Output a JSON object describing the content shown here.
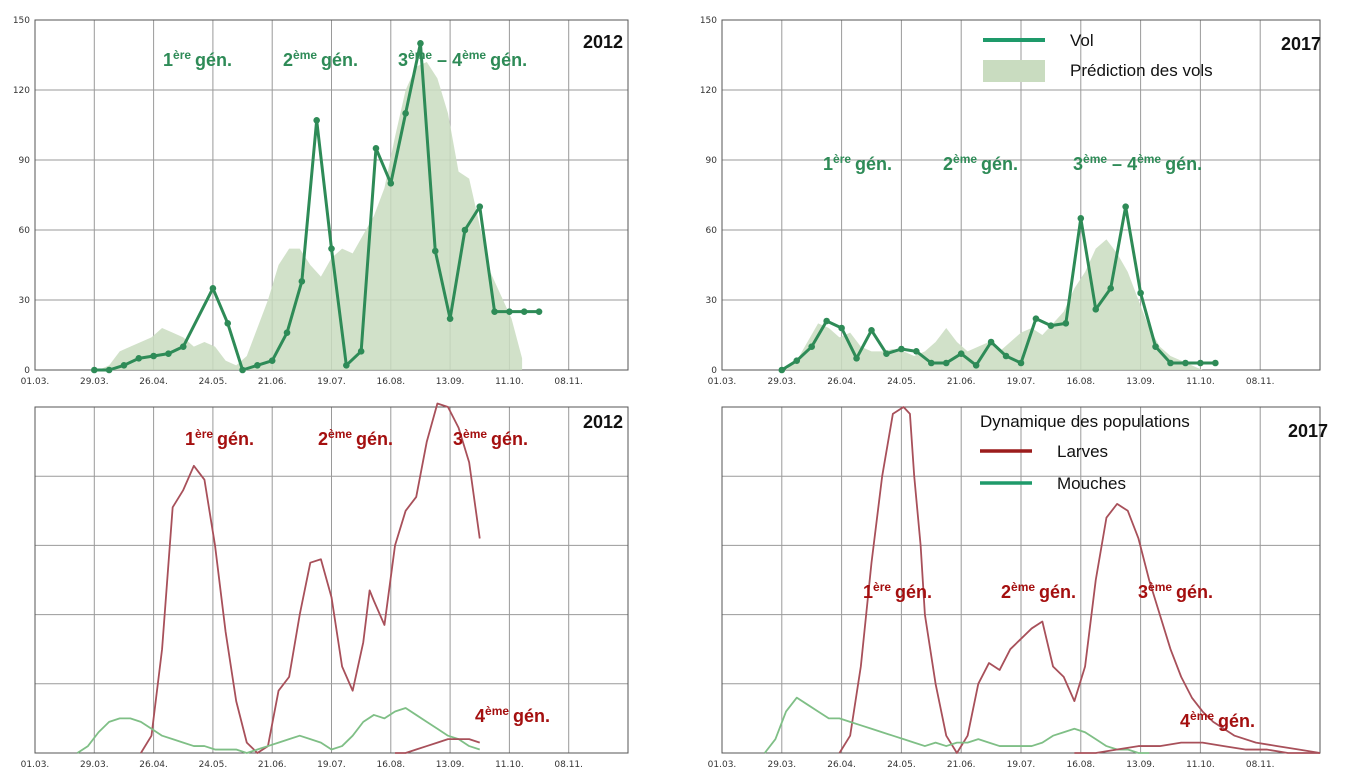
{
  "colors": {
    "flight": "#2e8b57",
    "prediction_fill": "#c9dcc0",
    "larvae": "#a8505a",
    "flies": "#7fbf86",
    "gen_green": "#2e8b57",
    "gen_red": "#a40f0f",
    "legend_larvae": "#9b1c1c",
    "legend_flies": "#1e9a6a"
  },
  "chart_data": [
    {
      "type": "line",
      "year": "2012",
      "x_tick_labels": [
        "01.03.",
        "29.03.",
        "26.04.",
        "24.05.",
        "21.06.",
        "19.07.",
        "16.08.",
        "13.09.",
        "11.10.",
        "08.11."
      ],
      "y_tick_labels": [
        "0",
        "30",
        "60",
        "90",
        "120",
        "150"
      ],
      "ylim": [
        0,
        150
      ],
      "xlim_days": [
        0,
        280
      ],
      "grid": true,
      "generation_labels": [
        {
          "num": "1",
          "sup": "ère",
          "word": "gén.",
          "dash": "",
          "num2": "",
          "sup2": ""
        },
        {
          "num": "2",
          "sup": "ème",
          "word": "gén.",
          "dash": "",
          "num2": "",
          "sup2": ""
        },
        {
          "num": "3",
          "sup": "ème",
          "word": "gén.",
          "dash": " – ",
          "num2": "4",
          "sup2": "ème"
        }
      ],
      "series": [
        {
          "name": "Vol",
          "style": "line-markers",
          "x": [
            28,
            35,
            42,
            49,
            56,
            63,
            70,
            84,
            91,
            98,
            105,
            112,
            119,
            126,
            133,
            140,
            147,
            154,
            161,
            168,
            175,
            182,
            189,
            196,
            203,
            210,
            217,
            224,
            231,
            238
          ],
          "y": [
            0,
            0,
            2,
            5,
            6,
            7,
            10,
            35,
            20,
            0,
            2,
            4,
            16,
            38,
            107,
            52,
            2,
            8,
            95,
            80,
            110,
            140,
            51,
            22,
            60,
            70,
            25,
            25,
            25,
            25
          ]
        },
        {
          "name": "Prédiction des vols",
          "style": "area",
          "x": [
            30,
            35,
            40,
            45,
            50,
            55,
            60,
            65,
            70,
            75,
            80,
            85,
            90,
            95,
            100,
            105,
            110,
            115,
            120,
            125,
            130,
            135,
            140,
            145,
            150,
            155,
            160,
            165,
            170,
            175,
            180,
            185,
            190,
            195,
            200,
            205,
            210,
            215,
            220,
            225,
            230
          ],
          "y": [
            0,
            2,
            8,
            10,
            12,
            14,
            18,
            16,
            14,
            10,
            12,
            10,
            4,
            2,
            6,
            18,
            30,
            45,
            52,
            52,
            45,
            40,
            48,
            52,
            50,
            58,
            66,
            78,
            100,
            120,
            130,
            132,
            125,
            110,
            85,
            82,
            62,
            42,
            32,
            22,
            5
          ]
        }
      ]
    },
    {
      "type": "line",
      "year": "2017",
      "x_tick_labels": [
        "01.03.",
        "29.03.",
        "26.04.",
        "24.05.",
        "21.06.",
        "19.07.",
        "16.08.",
        "13.09.",
        "11.10.",
        "08.11."
      ],
      "y_tick_labels": [
        "0",
        "30",
        "60",
        "90",
        "120",
        "150"
      ],
      "ylim": [
        0,
        150
      ],
      "xlim_days": [
        0,
        280
      ],
      "grid": true,
      "legend": [
        {
          "label": "Vol",
          "kind": "line"
        },
        {
          "label": "Prédiction des vols",
          "kind": "area"
        }
      ],
      "generation_labels": [
        {
          "num": "1",
          "sup": "ère",
          "word": "gén.",
          "dash": "",
          "num2": "",
          "sup2": ""
        },
        {
          "num": "2",
          "sup": "ème",
          "word": "gén.",
          "dash": "",
          "num2": "",
          "sup2": ""
        },
        {
          "num": "3",
          "sup": "ème",
          "word": "gén.",
          "dash": " – ",
          "num2": "4",
          "sup2": "ème"
        }
      ],
      "series": [
        {
          "name": "Vol",
          "style": "line-markers",
          "x": [
            28,
            35,
            42,
            49,
            56,
            63,
            70,
            77,
            84,
            91,
            98,
            105,
            112,
            119,
            126,
            133,
            140,
            147,
            154,
            161,
            168,
            175,
            182,
            189,
            196,
            203,
            210,
            217,
            224,
            231
          ],
          "y": [
            0,
            4,
            10,
            21,
            18,
            5,
            17,
            7,
            9,
            8,
            3,
            3,
            7,
            2,
            12,
            6,
            3,
            22,
            19,
            20,
            65,
            26,
            35,
            70,
            33,
            10,
            3,
            3,
            3,
            3
          ]
        },
        {
          "name": "Prédiction des vols",
          "style": "area",
          "x": [
            30,
            35,
            40,
            45,
            50,
            55,
            60,
            65,
            70,
            75,
            80,
            85,
            90,
            95,
            100,
            105,
            110,
            115,
            120,
            125,
            130,
            135,
            140,
            145,
            150,
            155,
            160,
            165,
            170,
            175,
            180,
            185,
            190,
            195,
            200,
            205,
            210,
            215,
            220,
            225
          ],
          "y": [
            0,
            4,
            12,
            20,
            18,
            14,
            16,
            10,
            8,
            8,
            9,
            8,
            6,
            8,
            12,
            18,
            12,
            8,
            10,
            12,
            8,
            12,
            16,
            18,
            15,
            20,
            25,
            35,
            42,
            52,
            56,
            50,
            42,
            30,
            18,
            10,
            6,
            4,
            2,
            0
          ]
        }
      ]
    },
    {
      "type": "line",
      "year": "2012",
      "x_tick_labels": [
        "01.03.",
        "29.03.",
        "26.04.",
        "24.05.",
        "21.06.",
        "19.07.",
        "16.08.",
        "13.09.",
        "11.10.",
        "08.11."
      ],
      "y_tick_labels": [],
      "ylim": [
        0,
        100
      ],
      "xlim_days": [
        0,
        280
      ],
      "grid": true,
      "generation_labels": [
        {
          "num": "1",
          "sup": "ère",
          "word": "gén.",
          "dash": "",
          "num2": "",
          "sup2": ""
        },
        {
          "num": "2",
          "sup": "ème",
          "word": "gén.",
          "dash": "",
          "num2": "",
          "sup2": ""
        },
        {
          "num": "3",
          "sup": "ème",
          "word": "gén.",
          "dash": "",
          "num2": "",
          "sup2": ""
        },
        {
          "num": "4",
          "sup": "ème",
          "word": "gén.",
          "dash": "",
          "num2": "",
          "sup2": ""
        }
      ],
      "series": [
        {
          "name": "Larves",
          "style": "line",
          "x": [
            50,
            55,
            60,
            65,
            70,
            75,
            80,
            85,
            90,
            95,
            100,
            105,
            110,
            115,
            120,
            125,
            130,
            135,
            140,
            145,
            150,
            155,
            158,
            160,
            165,
            170,
            175,
            180,
            185,
            190,
            195,
            200,
            205,
            210
          ],
          "y": [
            0,
            5,
            30,
            71,
            76,
            83,
            79,
            60,
            35,
            15,
            3,
            0,
            2,
            18,
            22,
            40,
            55,
            56,
            45,
            25,
            18,
            32,
            47,
            44,
            37,
            60,
            70,
            74,
            90,
            101,
            100,
            94,
            84,
            62
          ]
        },
        {
          "name": "Mouches",
          "style": "line",
          "x": [
            20,
            25,
            30,
            35,
            40,
            45,
            50,
            55,
            60,
            65,
            70,
            75,
            80,
            85,
            90,
            95,
            100,
            105,
            110,
            115,
            120,
            125,
            130,
            135,
            140,
            145,
            150,
            155,
            160,
            165,
            170,
            175,
            180,
            185,
            190,
            195,
            200,
            205,
            210
          ],
          "y": [
            0,
            2,
            6,
            9,
            10,
            10,
            9,
            7,
            5,
            4,
            3,
            2,
            2,
            1,
            1,
            1,
            0,
            1,
            2,
            3,
            4,
            5,
            4,
            3,
            1,
            2,
            5,
            9,
            11,
            10,
            12,
            13,
            11,
            9,
            7,
            5,
            4,
            2,
            1
          ]
        },
        {
          "name": "Larves (4e gén.)",
          "style": "line",
          "x": [
            170,
            175,
            180,
            185,
            190,
            195,
            200,
            205,
            210
          ],
          "y": [
            0,
            0,
            1,
            2,
            3,
            4,
            4,
            4,
            3
          ]
        }
      ]
    },
    {
      "type": "line",
      "year": "2017",
      "x_tick_labels": [
        "01.03.",
        "29.03.",
        "26.04.",
        "24.05.",
        "21.06.",
        "19.07.",
        "16.08.",
        "13.09.",
        "11.10.",
        "08.11."
      ],
      "y_tick_labels": [],
      "ylim": [
        0,
        100
      ],
      "xlim_days": [
        0,
        280
      ],
      "grid": true,
      "legend_title": "Dynamique des populations",
      "legend": [
        {
          "label": "Larves",
          "kind": "line-red"
        },
        {
          "label": "Mouches",
          "kind": "line-green"
        }
      ],
      "generation_labels": [
        {
          "num": "1",
          "sup": "ère",
          "word": "gén.",
          "dash": "",
          "num2": "",
          "sup2": ""
        },
        {
          "num": "2",
          "sup": "ème",
          "word": "gén.",
          "dash": "",
          "num2": "",
          "sup2": ""
        },
        {
          "num": "3",
          "sup": "ème",
          "word": "gén.",
          "dash": "",
          "num2": "",
          "sup2": ""
        },
        {
          "num": "4",
          "sup": "ème",
          "word": "gén.",
          "dash": "",
          "num2": "",
          "sup2": ""
        }
      ],
      "series": [
        {
          "name": "Larves",
          "style": "line",
          "x": [
            55,
            60,
            65,
            70,
            75,
            80,
            85,
            88,
            90,
            93,
            95,
            100,
            105,
            110,
            115,
            120,
            125,
            130,
            135,
            140,
            145,
            150,
            155,
            160,
            165,
            170,
            175,
            180,
            185,
            190,
            195,
            200,
            205,
            210,
            215,
            220,
            225,
            230,
            235,
            240,
            250,
            260,
            270,
            280
          ],
          "y": [
            0,
            5,
            25,
            55,
            80,
            98,
            100,
            98,
            80,
            60,
            40,
            20,
            5,
            0,
            5,
            20,
            26,
            24,
            30,
            33,
            36,
            38,
            25,
            22,
            15,
            25,
            50,
            68,
            72,
            70,
            62,
            50,
            40,
            30,
            22,
            16,
            12,
            9,
            7,
            5,
            3,
            2,
            1,
            0
          ]
        },
        {
          "name": "Mouches",
          "style": "line",
          "x": [
            20,
            25,
            30,
            35,
            40,
            45,
            50,
            55,
            60,
            65,
            70,
            75,
            80,
            85,
            90,
            95,
            100,
            105,
            110,
            115,
            120,
            125,
            130,
            135,
            140,
            145,
            150,
            155,
            160,
            165,
            170,
            175,
            180,
            185,
            190,
            195,
            200
          ],
          "y": [
            0,
            4,
            12,
            16,
            14,
            12,
            10,
            10,
            9,
            8,
            7,
            6,
            5,
            4,
            3,
            2,
            3,
            2,
            3,
            3,
            4,
            3,
            2,
            2,
            2,
            2,
            3,
            5,
            6,
            7,
            6,
            4,
            2,
            1,
            1,
            0,
            0
          ]
        },
        {
          "name": "Larves (4e gén.)",
          "style": "line",
          "x": [
            165,
            175,
            185,
            195,
            205,
            215,
            225,
            235,
            245,
            255,
            265,
            275,
            280
          ],
          "y": [
            0,
            0,
            1,
            2,
            2,
            3,
            3,
            2,
            1,
            1,
            0,
            0,
            0
          ]
        }
      ]
    }
  ]
}
